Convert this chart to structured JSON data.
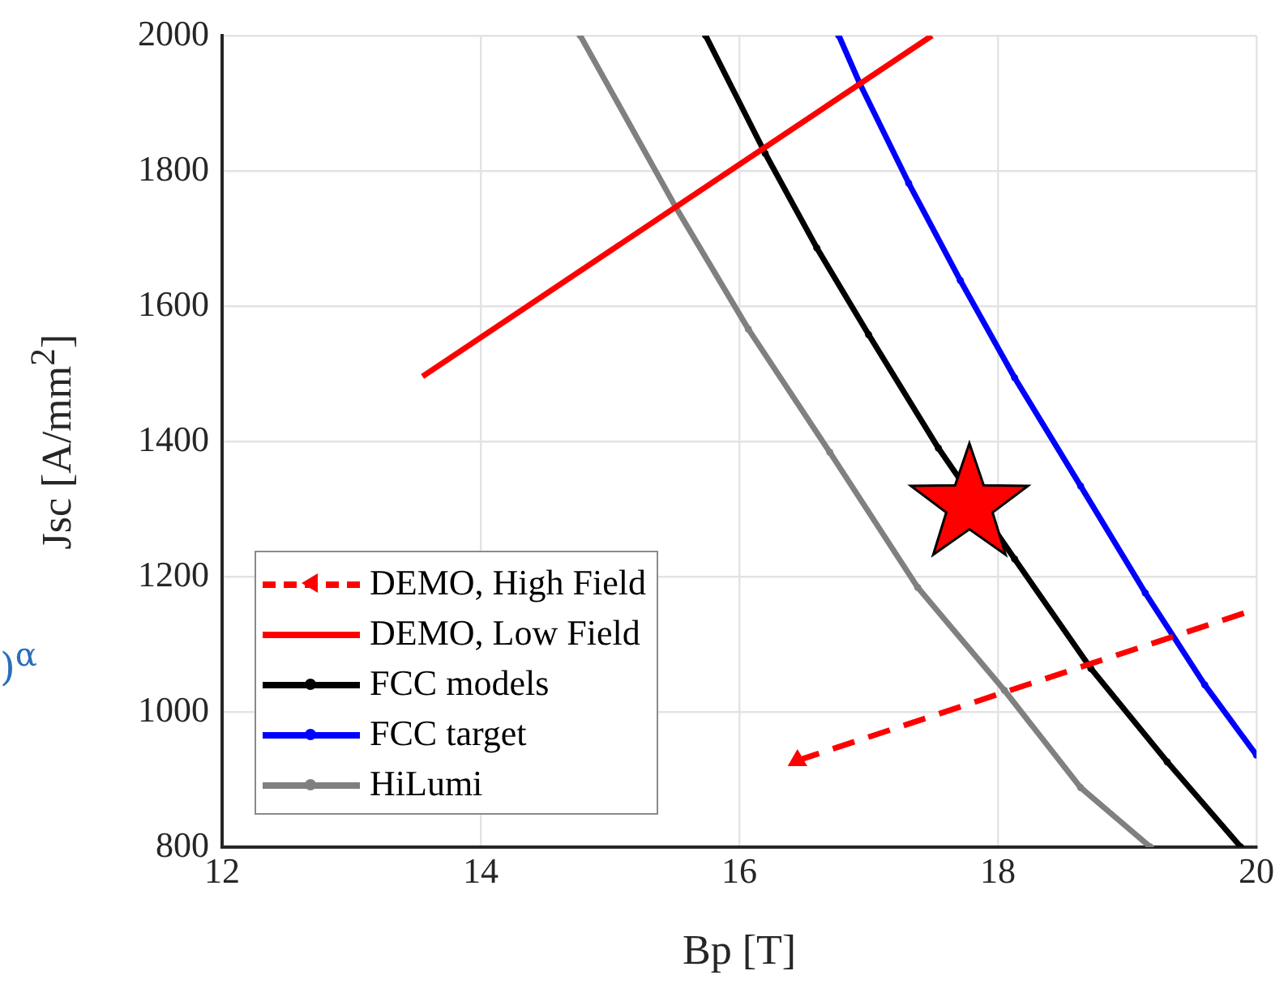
{
  "chart_data": {
    "type": "line",
    "xlabel": "Bp [T]",
    "ylabel": "Jsc [A/mm$^{2}$]",
    "xlim": [
      12,
      20
    ],
    "xticks": [
      12,
      14,
      16,
      18,
      20
    ],
    "ylim": [
      800,
      2000
    ],
    "yticks": [
      800,
      1000,
      1200,
      1400,
      1600,
      1800,
      2000
    ],
    "grid": true,
    "legend": "bottom left",
    "line_style": "solid",
    "annotations": [
      ")$^{α}$"
    ],
    "series": [
      {
        "name": "DEMO, High Field",
        "color": "#ff0000",
        "line_style": "dashed",
        "marker": "triangle",
        "x": [
          16.45,
          20
        ],
        "values": [
          928,
          1152
        ]
      },
      {
        "name": "DEMO, Low Field",
        "color": "#ff0000",
        "marker": "none",
        "x": [
          13.55,
          17.49
        ],
        "values": [
          1496,
          2000
        ]
      },
      {
        "name": "FCC models",
        "color": "#000000",
        "marker": "circle",
        "x": [
          15.74,
          16.2,
          16.6,
          17.0,
          17.54,
          18.13,
          18.72,
          19.31,
          19.88
        ],
        "values": [
          2000,
          1826,
          1686,
          1558,
          1390,
          1226,
          1064,
          926,
          800
        ]
      },
      {
        "name": "FCC target",
        "color": "#0000ff",
        "marker": "circle",
        "x": [
          16.77,
          16.93,
          17.31,
          17.71,
          18.13,
          18.64,
          19.14,
          19.6,
          20
        ],
        "values": [
          2000,
          1930,
          1782,
          1638,
          1494,
          1334,
          1176,
          1040,
          936
        ]
      },
      {
        "name": "HiLumi",
        "color": "#808080",
        "marker": "circle",
        "x": [
          14.77,
          15.51,
          16.07,
          16.7,
          17.38,
          18.05,
          18.64,
          19.18
        ],
        "values": [
          2000,
          1746,
          1566,
          1384,
          1184,
          1032,
          888,
          800
        ]
      },
      {
        "type": "scatter",
        "color": "#ff0000",
        "marker": "star",
        "x": [
          17.78
        ],
        "values": [
          1306
        ]
      }
    ]
  }
}
